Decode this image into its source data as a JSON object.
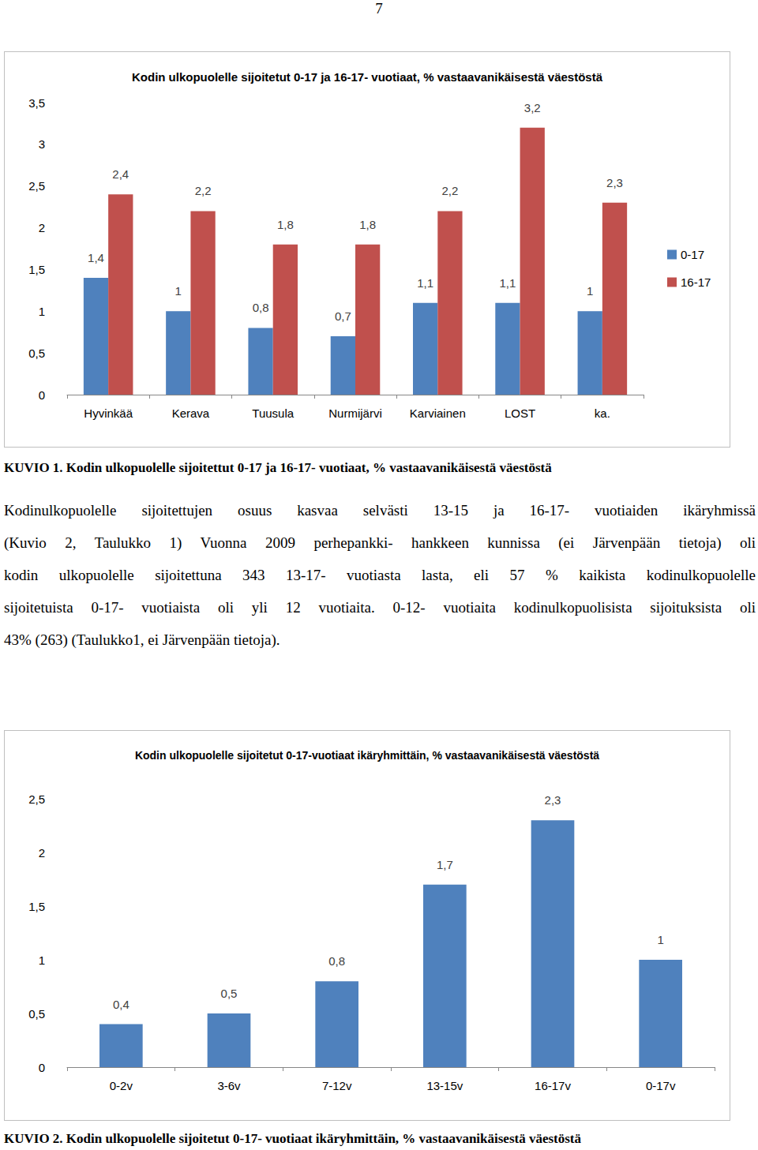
{
  "page_number": "7",
  "chart_data": [
    {
      "type": "bar",
      "title": "Kodin ulkopuolelle sijoitetut 0-17 ja 16-17- vuotiaat, % vastaavanikäisestä väestöstä",
      "categories": [
        "Hyvinkää",
        "Kerava",
        "Tuusula",
        "Nurmijärvi",
        "Karviainen",
        "LOST",
        "ka."
      ],
      "series": [
        {
          "name": "0-17",
          "color": "#4f81bd",
          "values": [
            1.4,
            1,
            0.8,
            0.7,
            1.1,
            1.1,
            1
          ],
          "value_labels": [
            "1,4",
            "1",
            "0,8",
            "0,7",
            "1,1",
            "1,1",
            "1"
          ]
        },
        {
          "name": "16-17",
          "color": "#c0504d",
          "values": [
            2.4,
            2.2,
            1.8,
            1.8,
            2.2,
            3.2,
            2.3
          ],
          "value_labels": [
            "2,4",
            "2,2",
            "1,8",
            "1,8",
            "2,2",
            "3,2",
            "2,3"
          ]
        }
      ],
      "ylim": [
        0,
        3.5
      ],
      "yticks": [
        0,
        {
          "value": 0.5,
          "label": "0,5"
        },
        1,
        {
          "value": 1.5,
          "label": "1,5"
        },
        2,
        {
          "value": 2.5,
          "label": "2,5"
        },
        3,
        {
          "value": 3.5,
          "label": "3,5"
        }
      ],
      "grid": false,
      "legend": "right",
      "data_labels": true
    },
    {
      "type": "bar",
      "title": "Kodin ulkopuolelle sijoitetut 0-17-vuotiaat ikäryhmittäin, % vastaavanikäisestä väestöstä",
      "categories": [
        "0-2v",
        "3-6v",
        "7-12v",
        "13-15v",
        "16-17v",
        "0-17v"
      ],
      "values": [
        0.4,
        0.5,
        0.8,
        1.7,
        2.3,
        1
      ],
      "value_labels": [
        "0,4",
        "0,5",
        "0,8",
        "1,7",
        "2,3",
        "1"
      ],
      "color": "#4f81bd",
      "ylim": [
        0,
        2.5
      ],
      "yticks": [
        0,
        {
          "value": 0.5,
          "label": "0,5"
        },
        1,
        {
          "value": 1.5,
          "label": "1,5"
        },
        2,
        {
          "value": 2.5,
          "label": "2,5"
        }
      ],
      "grid": false,
      "data_labels": true
    }
  ],
  "captions": [
    "KUVIO 1. Kodin ulkopuolelle sijoitettut 0-17 ja 16-17- vuotiaat, % vastaavanikäisestä väestöstä",
    "KUVIO 2. Kodin ulkopuolelle sijoitetut 0-17- vuotiaat ikäryhmittäin, % vastaavanikäisestä väestöstä"
  ],
  "body_text": [
    "Kodinulkopuolelle sijoitettujen osuus kasvaa selvästi 13-15 ja 16-17- vuotiaiden ikäryhmissä",
    "(Kuvio 2, Taulukko 1) Vuonna 2009 perhepankki- hankkeen kunnissa (ei Järvenpään tietoja) oli",
    "kodin ulkopuolelle sijoitettuna 343 13-17- vuotiasta lasta, eli 57 % kaikista kodinulkopuolelle",
    "sijoitetuista 0-17- vuotiaista oli yli 12 vuotiaita. 0-12- vuotiaita kodinulkopuolisista sijoituksista oli",
    "43% (263) (Taulukko1, ei Järvenpään tietoja)."
  ]
}
